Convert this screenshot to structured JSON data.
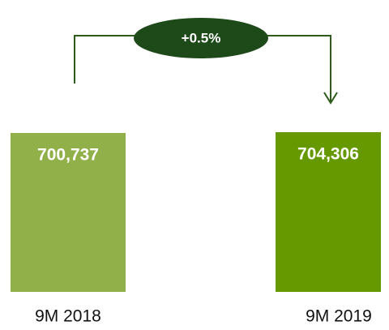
{
  "chart_data": {
    "type": "bar",
    "categories": [
      "9M 2018",
      "9M 2019"
    ],
    "values": [
      700737,
      704306
    ],
    "value_labels": [
      "700,737",
      "704,306"
    ],
    "colors": [
      "#92b04a",
      "#669900"
    ],
    "annotation": "+0.5%"
  }
}
